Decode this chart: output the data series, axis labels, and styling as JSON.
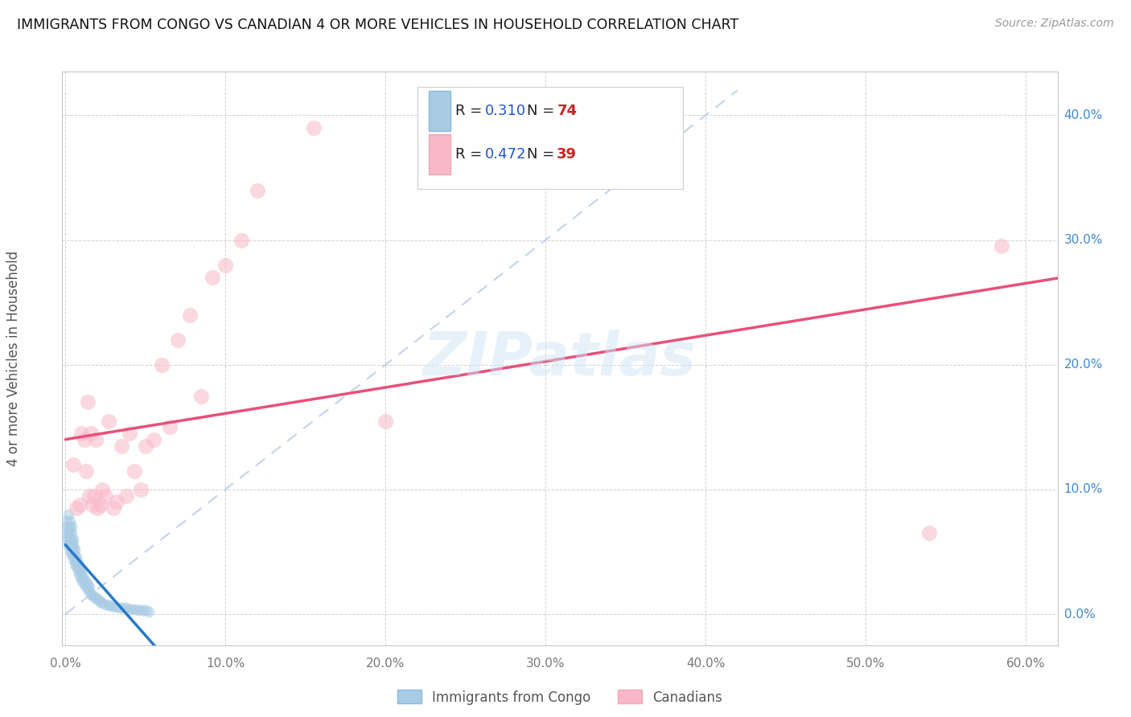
{
  "title": "IMMIGRANTS FROM CONGO VS CANADIAN 4 OR MORE VEHICLES IN HOUSEHOLD CORRELATION CHART",
  "source": "Source: ZipAtlas.com",
  "ylabel": "4 or more Vehicles in Household",
  "watermark": "ZIPatlas",
  "legend_label1": "Immigrants from Congo",
  "legend_label2": "Canadians",
  "r1": "0.310",
  "n1": "74",
  "r2": "0.472",
  "n2": "39",
  "xlim": [
    -0.002,
    0.62
  ],
  "ylim": [
    -0.025,
    0.435
  ],
  "xtick_vals": [
    0.0,
    0.1,
    0.2,
    0.3,
    0.4,
    0.5,
    0.6
  ],
  "ytick_vals": [
    0.0,
    0.1,
    0.2,
    0.3,
    0.4
  ],
  "color_blue": "#a8cce4",
  "color_pink": "#f9b8c8",
  "color_blue_line": "#2878c8",
  "color_pink_line": "#e8507a",
  "color_diag": "#b8cce8",
  "blue_x": [
    0.001,
    0.001,
    0.001,
    0.001,
    0.002,
    0.002,
    0.002,
    0.002,
    0.002,
    0.003,
    0.003,
    0.003,
    0.003,
    0.003,
    0.003,
    0.004,
    0.004,
    0.004,
    0.004,
    0.004,
    0.004,
    0.005,
    0.005,
    0.005,
    0.005,
    0.005,
    0.006,
    0.006,
    0.006,
    0.006,
    0.007,
    0.007,
    0.007,
    0.008,
    0.008,
    0.008,
    0.009,
    0.009,
    0.01,
    0.01,
    0.01,
    0.011,
    0.011,
    0.012,
    0.012,
    0.013,
    0.013,
    0.014,
    0.014,
    0.015,
    0.015,
    0.016,
    0.017,
    0.018,
    0.019,
    0.02,
    0.021,
    0.022,
    0.023,
    0.025,
    0.027,
    0.028,
    0.03,
    0.032,
    0.034,
    0.036,
    0.038,
    0.04,
    0.042,
    0.044,
    0.046,
    0.048,
    0.05,
    0.052
  ],
  "blue_y": [
    0.06,
    0.065,
    0.07,
    0.075,
    0.055,
    0.06,
    0.065,
    0.07,
    0.08,
    0.05,
    0.055,
    0.06,
    0.065,
    0.07,
    0.075,
    0.048,
    0.052,
    0.056,
    0.06,
    0.065,
    0.07,
    0.044,
    0.048,
    0.052,
    0.056,
    0.06,
    0.04,
    0.044,
    0.048,
    0.052,
    0.038,
    0.042,
    0.046,
    0.034,
    0.038,
    0.042,
    0.03,
    0.035,
    0.028,
    0.032,
    0.036,
    0.026,
    0.03,
    0.024,
    0.028,
    0.022,
    0.026,
    0.02,
    0.024,
    0.018,
    0.022,
    0.016,
    0.015,
    0.014,
    0.013,
    0.012,
    0.011,
    0.01,
    0.009,
    0.008,
    0.007,
    0.007,
    0.006,
    0.006,
    0.005,
    0.005,
    0.005,
    0.004,
    0.004,
    0.004,
    0.003,
    0.003,
    0.003,
    0.002
  ],
  "pink_x": [
    0.005,
    0.007,
    0.009,
    0.01,
    0.012,
    0.013,
    0.014,
    0.015,
    0.016,
    0.017,
    0.018,
    0.019,
    0.02,
    0.022,
    0.023,
    0.025,
    0.027,
    0.03,
    0.032,
    0.035,
    0.038,
    0.04,
    0.043,
    0.047,
    0.05,
    0.055,
    0.06,
    0.065,
    0.07,
    0.078,
    0.085,
    0.092,
    0.1,
    0.11,
    0.12,
    0.155,
    0.2,
    0.54,
    0.585
  ],
  "pink_y": [
    0.12,
    0.085,
    0.088,
    0.145,
    0.14,
    0.115,
    0.17,
    0.095,
    0.145,
    0.088,
    0.095,
    0.14,
    0.085,
    0.088,
    0.1,
    0.095,
    0.155,
    0.085,
    0.09,
    0.135,
    0.095,
    0.145,
    0.115,
    0.1,
    0.135,
    0.14,
    0.2,
    0.15,
    0.22,
    0.24,
    0.175,
    0.27,
    0.28,
    0.3,
    0.34,
    0.39,
    0.155,
    0.065,
    0.295
  ]
}
